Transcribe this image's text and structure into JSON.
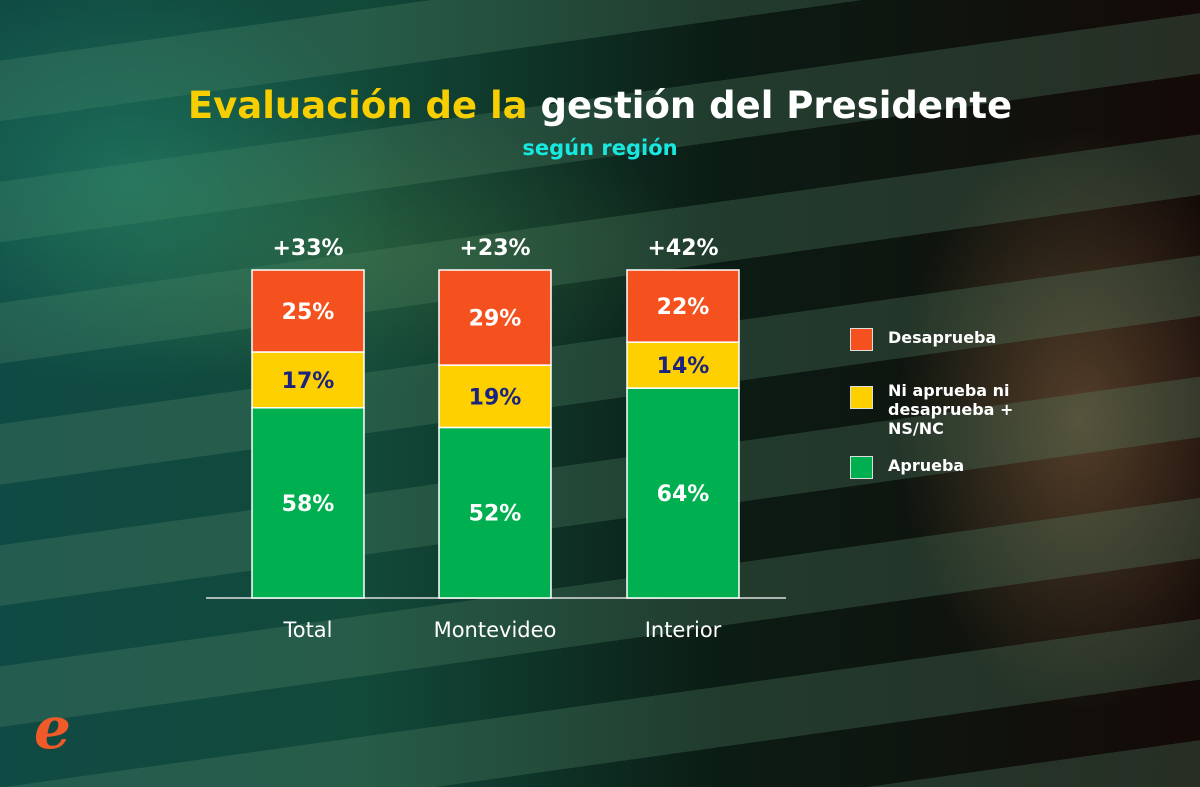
{
  "chart_data": {
    "type": "bar",
    "stacked": true,
    "title_part1": "Evaluación de la",
    "title_part2": "gestión del Presidente",
    "subtitle": "según región",
    "categories": [
      "Total",
      "Montevideo",
      "Interior"
    ],
    "net_labels": [
      "+33%",
      "+23%",
      "+42%"
    ],
    "series": [
      {
        "name": "Aprueba",
        "color": "#00b050",
        "values": [
          58,
          52,
          64
        ]
      },
      {
        "name": "Ni aprueba ni desaprueba + NS/NC",
        "color": "#ffd000",
        "values": [
          17,
          19,
          14
        ]
      },
      {
        "name": "Desaprueba",
        "color": "#f4511e",
        "values": [
          25,
          29,
          22
        ]
      }
    ],
    "ylim": [
      0,
      100
    ],
    "legend": "right"
  },
  "legend": [
    "Desaprueba",
    "Ni aprueba ni desaprueba + NS/NC",
    "Aprueba"
  ],
  "logo": "e"
}
